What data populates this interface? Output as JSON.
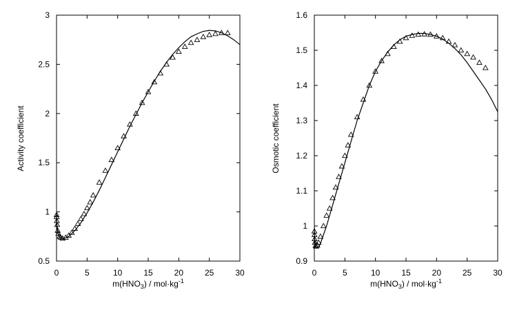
{
  "chart_data": [
    {
      "type": "scatter",
      "xlabel_main": "m(HNO",
      "xlabel_sub": "3",
      "xlabel_rest": ") / mol·kg",
      "xlabel_sup": "-1",
      "ylabel": "Activity coefficient",
      "xlim": [
        0,
        30
      ],
      "ylim": [
        0.5,
        3
      ],
      "xticks": [
        "0",
        "5",
        "10",
        "15",
        "20",
        "25",
        "30"
      ],
      "yticks": [
        "0.5",
        "1",
        "1.5",
        "2",
        "2.5",
        "3"
      ],
      "series": [
        {
          "marker": "triangle-open",
          "x": [
            0.01,
            0.02,
            0.05,
            0.1,
            0.2,
            0.3,
            0.5,
            0.7,
            1.0,
            1.5,
            2.0,
            2.5,
            3.0,
            3.5,
            4.0,
            4.5,
            5.0,
            5.5,
            6.0,
            7.0,
            8.0,
            9.0,
            10.0,
            11.0,
            12.0,
            13.0,
            14.0,
            15.0,
            16.0,
            17.0,
            18.0,
            19.0,
            20.0,
            21.0,
            22.0,
            23.0,
            24.0,
            25.0,
            26.0,
            27.0,
            28.0
          ],
          "y": [
            0.97,
            0.95,
            0.91,
            0.87,
            0.81,
            0.78,
            0.75,
            0.74,
            0.73,
            0.74,
            0.76,
            0.79,
            0.83,
            0.88,
            0.93,
            0.98,
            1.04,
            1.1,
            1.17,
            1.3,
            1.42,
            1.53,
            1.65,
            1.77,
            1.89,
            2.0,
            2.11,
            2.22,
            2.32,
            2.41,
            2.5,
            2.57,
            2.63,
            2.68,
            2.72,
            2.75,
            2.78,
            2.8,
            2.81,
            2.82,
            2.82
          ]
        },
        {
          "line": "solid",
          "x": [
            0.0,
            0.05,
            0.1,
            0.2,
            0.3,
            0.5,
            0.7,
            1.0,
            1.5,
            2.0,
            3.0,
            4.0,
            5.0,
            6.0,
            7.0,
            8.0,
            9.0,
            10.0,
            11.0,
            12.0,
            13.0,
            14.0,
            15.0,
            16.0,
            17.0,
            18.0,
            19.0,
            20.0,
            21.0,
            22.0,
            23.0,
            24.0,
            25.0,
            26.0,
            27.0,
            28.0,
            29.0,
            30.0
          ],
          "y": [
            1.0,
            0.89,
            0.85,
            0.8,
            0.77,
            0.745,
            0.735,
            0.73,
            0.735,
            0.75,
            0.81,
            0.89,
            0.99,
            1.1,
            1.22,
            1.35,
            1.48,
            1.61,
            1.74,
            1.87,
            1.99,
            2.11,
            2.22,
            2.33,
            2.43,
            2.52,
            2.6,
            2.67,
            2.73,
            2.78,
            2.81,
            2.835,
            2.845,
            2.84,
            2.82,
            2.79,
            2.75,
            2.7
          ]
        }
      ]
    },
    {
      "type": "scatter",
      "xlabel_main": "m(HNO",
      "xlabel_sub": "3",
      "xlabel_rest": ") / mol·kg",
      "xlabel_sup": "-1",
      "ylabel": "Osmotic coefficient",
      "xlim": [
        0,
        30
      ],
      "ylim": [
        0.9,
        1.6
      ],
      "xticks": [
        "0",
        "5",
        "10",
        "15",
        "20",
        "25",
        "30"
      ],
      "yticks": [
        "0.9",
        "1",
        "1.1",
        "1.2",
        "1.3",
        "1.4",
        "1.5",
        "1.6"
      ],
      "series": [
        {
          "marker": "triangle-open",
          "x": [
            0.01,
            0.02,
            0.05,
            0.1,
            0.2,
            0.3,
            0.5,
            0.7,
            1.0,
            1.5,
            2.0,
            2.5,
            3.0,
            3.5,
            4.0,
            4.5,
            5.0,
            5.5,
            6.0,
            7.0,
            8.0,
            9.0,
            10.0,
            11.0,
            12.0,
            13.0,
            14.0,
            15.0,
            16.0,
            17.0,
            18.0,
            19.0,
            20.0,
            21.0,
            22.0,
            23.0,
            24.0,
            25.0,
            26.0,
            27.0,
            28.0
          ],
          "y": [
            0.985,
            0.975,
            0.963,
            0.953,
            0.944,
            0.942,
            0.945,
            0.953,
            0.97,
            1.0,
            1.03,
            1.05,
            1.08,
            1.11,
            1.14,
            1.17,
            1.2,
            1.23,
            1.26,
            1.31,
            1.36,
            1.4,
            1.44,
            1.47,
            1.49,
            1.51,
            1.525,
            1.535,
            1.542,
            1.545,
            1.546,
            1.545,
            1.54,
            1.535,
            1.525,
            1.515,
            1.5,
            1.49,
            1.48,
            1.465,
            1.45
          ]
        },
        {
          "line": "solid",
          "x": [
            0.0,
            0.05,
            0.1,
            0.2,
            0.3,
            0.5,
            0.7,
            1.0,
            1.5,
            2.0,
            3.0,
            4.0,
            5.0,
            6.0,
            7.0,
            8.0,
            9.0,
            10.0,
            11.0,
            12.0,
            13.0,
            14.0,
            15.0,
            16.0,
            17.0,
            18.0,
            19.0,
            20.0,
            21.0,
            22.0,
            23.0,
            24.0,
            25.0,
            26.0,
            27.0,
            28.0,
            29.0,
            30.0
          ],
          "y": [
            1.0,
            0.965,
            0.955,
            0.945,
            0.94,
            0.938,
            0.94,
            0.95,
            0.975,
            1.0,
            1.06,
            1.12,
            1.18,
            1.24,
            1.3,
            1.35,
            1.4,
            1.44,
            1.47,
            1.495,
            1.515,
            1.53,
            1.54,
            1.545,
            1.548,
            1.548,
            1.545,
            1.54,
            1.532,
            1.52,
            1.505,
            1.487,
            1.465,
            1.44,
            1.415,
            1.39,
            1.36,
            1.325
          ]
        }
      ]
    }
  ]
}
